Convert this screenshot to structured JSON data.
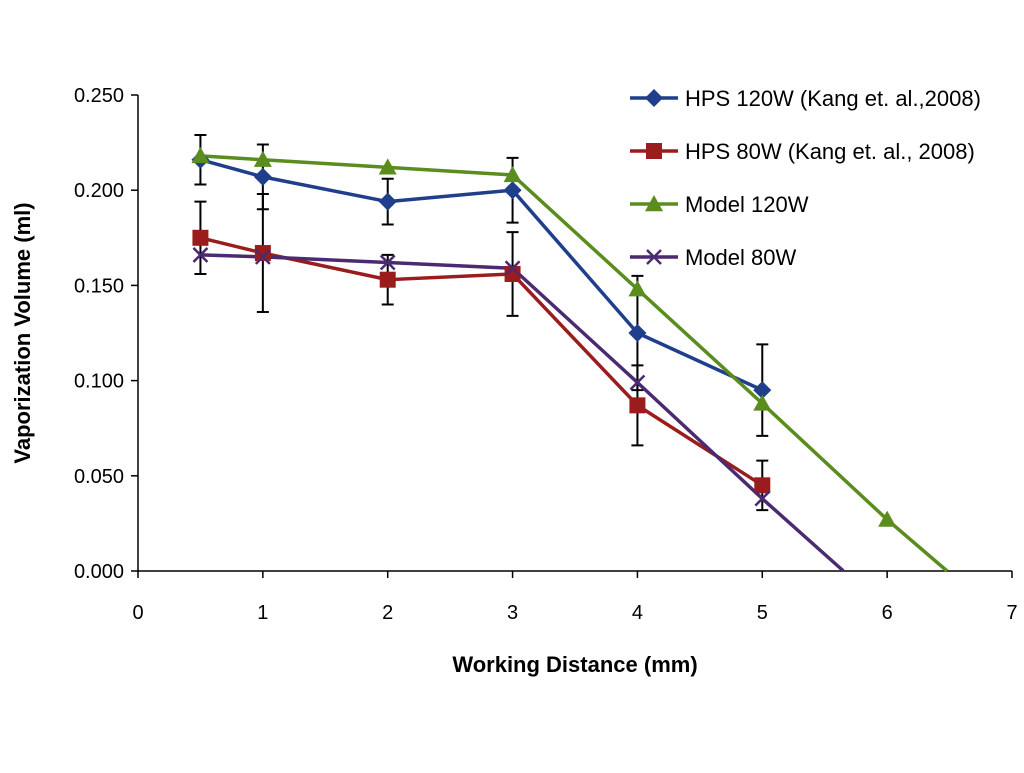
{
  "chart_data": {
    "type": "line",
    "title": "",
    "xlabel": "Working Distance (mm)",
    "ylabel": "Vaporization Volume (ml)",
    "xlim": [
      0,
      7
    ],
    "ylim": [
      0,
      0.25
    ],
    "x_ticks": [
      "0",
      "1",
      "2",
      "3",
      "4",
      "5",
      "6",
      "7"
    ],
    "y_ticks": [
      "0.000",
      "0.050",
      "0.100",
      "0.150",
      "0.200",
      "0.250"
    ],
    "grid": false,
    "legend_position": "top-right",
    "series": [
      {
        "name": "HPS 120W (Kang et. al.,2008)",
        "color": "#1f3f8c",
        "marker": "diamond",
        "x": [
          0.5,
          1,
          2,
          3,
          4,
          5
        ],
        "y": [
          0.216,
          0.207,
          0.194,
          0.2,
          0.125,
          0.095
        ],
        "error": [
          0.013,
          0.017,
          0.012,
          0.017,
          0.03,
          0.024
        ]
      },
      {
        "name": "HPS 80W (Kang et. al., 2008)",
        "color": "#9b1c1c",
        "marker": "square",
        "x": [
          0.5,
          1,
          2,
          3,
          4,
          5
        ],
        "y": [
          0.175,
          0.167,
          0.153,
          0.156,
          0.087,
          0.045
        ],
        "error": [
          0.019,
          0.031,
          0.013,
          0.022,
          0.021,
          0.013
        ]
      },
      {
        "name": "Model 120W",
        "color": "#5a8c1e",
        "marker": "triangle",
        "x": [
          0.5,
          1,
          2,
          3,
          4,
          5,
          6,
          6.48
        ],
        "y": [
          0.218,
          0.216,
          0.212,
          0.208,
          0.148,
          0.088,
          0.027,
          0.0
        ],
        "error": null
      },
      {
        "name": "Model 80W",
        "color": "#4a2a70",
        "marker": "x",
        "x": [
          0.5,
          1,
          2,
          3,
          4,
          5,
          5.65
        ],
        "y": [
          0.166,
          0.165,
          0.162,
          0.159,
          0.099,
          0.038,
          0.0
        ],
        "error": null
      }
    ]
  }
}
